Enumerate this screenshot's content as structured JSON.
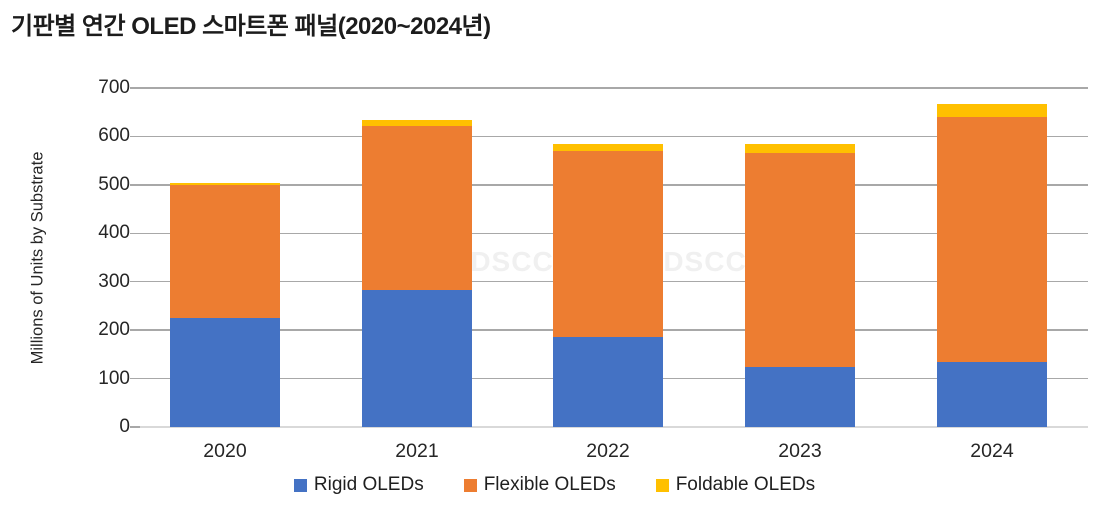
{
  "chart_data": {
    "type": "bar",
    "stacked": true,
    "title": "기판별 연간 OLED 스마트폰 패널(2020~2024년)",
    "ylabel": "Millions of Units by Substrate",
    "xlabel": "",
    "categories": [
      "2020",
      "2021",
      "2022",
      "2023",
      "2024"
    ],
    "series": [
      {
        "name": "Rigid OLEDs",
        "color": "#4472C4",
        "values": [
          226,
          282,
          186,
          124,
          135
        ]
      },
      {
        "name": "Flexible OLEDs",
        "color": "#ED7D31",
        "values": [
          274,
          340,
          383,
          441,
          506
        ]
      },
      {
        "name": "Foldable OLEDs",
        "color": "#FFC000",
        "values": [
          3,
          12,
          16,
          19,
          26
        ]
      }
    ],
    "totals": [
      503,
      634,
      585,
      584,
      667
    ],
    "ylim": [
      0,
      700
    ],
    "yticks": [
      0,
      100,
      200,
      300,
      400,
      500,
      600,
      700
    ],
    "grid": true,
    "legend_position": "bottom",
    "watermark": "DSCC"
  }
}
